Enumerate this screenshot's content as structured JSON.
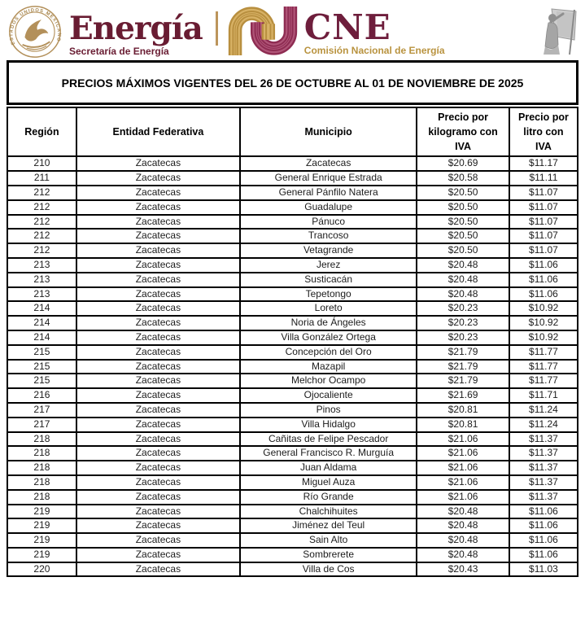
{
  "header": {
    "energia": {
      "seal_text": "ESTADOS UNIDOS MEXICANOS",
      "wordmark": "Energía",
      "subtitle": "Secretaría de Energía"
    },
    "cne": {
      "wordmark": "CNE",
      "subtitle": "Comisión Nacional de Energía"
    }
  },
  "title": "PRECIOS MÁXIMOS VIGENTES DEL 26 DE OCTUBRE AL 01 DE NOVIEMBRE DE 2025",
  "table": {
    "columns": [
      "Región",
      "Entidad Federativa",
      "Municipio",
      "Precio por kilogramo con IVA",
      "Precio por litro con IVA"
    ],
    "column_keys": [
      "region",
      "entidad-federativa",
      "municipio",
      "precio-kilogramo",
      "precio-litro"
    ],
    "rows": [
      [
        "210",
        "Zacatecas",
        "Zacatecas",
        "$20.69",
        "$11.17"
      ],
      [
        "211",
        "Zacatecas",
        "General Enrique Estrada",
        "$20.58",
        "$11.11"
      ],
      [
        "212",
        "Zacatecas",
        "General Pánfilo Natera",
        "$20.50",
        "$11.07"
      ],
      [
        "212",
        "Zacatecas",
        "Guadalupe",
        "$20.50",
        "$11.07"
      ],
      [
        "212",
        "Zacatecas",
        "Pánuco",
        "$20.50",
        "$11.07"
      ],
      [
        "212",
        "Zacatecas",
        "Trancoso",
        "$20.50",
        "$11.07"
      ],
      [
        "212",
        "Zacatecas",
        "Vetagrande",
        "$20.50",
        "$11.07"
      ],
      [
        "213",
        "Zacatecas",
        "Jerez",
        "$20.48",
        "$11.06"
      ],
      [
        "213",
        "Zacatecas",
        "Susticacán",
        "$20.48",
        "$11.06"
      ],
      [
        "213",
        "Zacatecas",
        "Tepetongo",
        "$20.48",
        "$11.06"
      ],
      [
        "214",
        "Zacatecas",
        "Loreto",
        "$20.23",
        "$10.92"
      ],
      [
        "214",
        "Zacatecas",
        "Noria de Ángeles",
        "$20.23",
        "$10.92"
      ],
      [
        "214",
        "Zacatecas",
        "Villa González Ortega",
        "$20.23",
        "$10.92"
      ],
      [
        "215",
        "Zacatecas",
        "Concepción del Oro",
        "$21.79",
        "$11.77"
      ],
      [
        "215",
        "Zacatecas",
        "Mazapil",
        "$21.79",
        "$11.77"
      ],
      [
        "215",
        "Zacatecas",
        "Melchor Ocampo",
        "$21.79",
        "$11.77"
      ],
      [
        "216",
        "Zacatecas",
        "Ojocaliente",
        "$21.69",
        "$11.71"
      ],
      [
        "217",
        "Zacatecas",
        "Pinos",
        "$20.81",
        "$11.24"
      ],
      [
        "217",
        "Zacatecas",
        "Villa Hidalgo",
        "$20.81",
        "$11.24"
      ],
      [
        "218",
        "Zacatecas",
        "Cañitas de Felipe Pescador",
        "$21.06",
        "$11.37"
      ],
      [
        "218",
        "Zacatecas",
        "General Francisco R. Murguía",
        "$21.06",
        "$11.37"
      ],
      [
        "218",
        "Zacatecas",
        "Juan Aldama",
        "$21.06",
        "$11.37"
      ],
      [
        "218",
        "Zacatecas",
        "Miguel Auza",
        "$21.06",
        "$11.37"
      ],
      [
        "218",
        "Zacatecas",
        "Río Grande",
        "$21.06",
        "$11.37"
      ],
      [
        "219",
        "Zacatecas",
        "Chalchihuites",
        "$20.48",
        "$11.06"
      ],
      [
        "219",
        "Zacatecas",
        "Jiménez del Teul",
        "$20.48",
        "$11.06"
      ],
      [
        "219",
        "Zacatecas",
        "Sain Alto",
        "$20.48",
        "$11.06"
      ],
      [
        "219",
        "Zacatecas",
        "Sombrerete",
        "$20.48",
        "$11.06"
      ],
      [
        "220",
        "Zacatecas",
        "Villa de Cos",
        "$20.43",
        "$11.03"
      ]
    ]
  },
  "colors": {
    "maroon": "#691c32",
    "gold": "#bc955c",
    "cne_gold": "#b9933f",
    "table_border": "#000000"
  }
}
